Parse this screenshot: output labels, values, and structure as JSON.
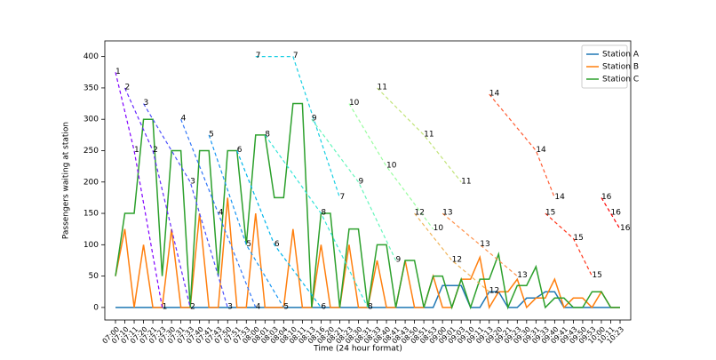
{
  "chart_data": {
    "type": "line",
    "xlabel": "Time (24 hour format)",
    "ylabel": "Passengers waiting at station",
    "categories": [
      "07:00",
      "07:10",
      "07:11",
      "07:20",
      "07:21",
      "07:23",
      "07:30",
      "07:31",
      "07:33",
      "07:40",
      "07:41",
      "07:43",
      "07:50",
      "07:51",
      "07:53",
      "08:00",
      "08:01",
      "08:03",
      "08:04",
      "08:10",
      "08:11",
      "08:13",
      "08:16",
      "08:20",
      "08:21",
      "08:23",
      "08:30",
      "08:31",
      "08:33",
      "08:40",
      "08:41",
      "08:43",
      "08:50",
      "08:51",
      "08:53",
      "09:00",
      "09:01",
      "09:03",
      "09:10",
      "09:11",
      "09:13",
      "09:20",
      "09:21",
      "09:23",
      "09:30",
      "09:31",
      "09:33",
      "09:40",
      "09:41",
      "09:43",
      "09:50",
      "09:53",
      "10:00",
      "10:11",
      "10:23"
    ],
    "series": [
      {
        "name": "Station A",
        "color": "#1f77b4",
        "values": [
          0,
          0,
          0,
          0,
          0,
          0,
          0,
          0,
          0,
          0,
          0,
          0,
          0,
          0,
          0,
          0,
          0,
          0,
          0,
          0,
          0,
          0,
          0,
          0,
          0,
          0,
          0,
          0,
          0,
          0,
          0,
          0,
          0,
          0,
          0,
          35,
          35,
          35,
          0,
          0,
          25,
          25,
          0,
          0,
          15,
          15,
          25,
          25,
          0,
          0,
          0,
          0,
          0,
          0,
          0
        ]
      },
      {
        "name": "Station B",
        "color": "#ff7f0e",
        "values": [
          50,
          125,
          0,
          100,
          0,
          0,
          125,
          0,
          0,
          150,
          0,
          0,
          175,
          0,
          0,
          150,
          0,
          0,
          0,
          125,
          0,
          0,
          100,
          0,
          0,
          100,
          0,
          0,
          75,
          0,
          0,
          75,
          0,
          0,
          50,
          0,
          0,
          45,
          45,
          80,
          0,
          25,
          25,
          45,
          0,
          15,
          15,
          45,
          0,
          15,
          15,
          0,
          25,
          0,
          0
        ]
      },
      {
        "name": "Station C",
        "color": "#2ca02c",
        "values": [
          50,
          150,
          150,
          300,
          300,
          50,
          250,
          250,
          0,
          250,
          250,
          50,
          250,
          250,
          100,
          275,
          275,
          175,
          175,
          325,
          325,
          0,
          150,
          150,
          0,
          125,
          125,
          0,
          100,
          100,
          0,
          75,
          75,
          0,
          50,
          50,
          0,
          45,
          0,
          45,
          45,
          85,
          0,
          35,
          35,
          65,
          0,
          15,
          15,
          0,
          0,
          25,
          25,
          0,
          0
        ]
      }
    ],
    "annotations": [
      {
        "name": "1",
        "color": "#8000ff",
        "x": [
          "07:00",
          "07:11",
          "07:23"
        ],
        "values": [
          375,
          250,
          0
        ]
      },
      {
        "name": "2",
        "color": "#6629fe",
        "x": [
          "07:10",
          "07:21",
          "07:33"
        ],
        "values": [
          350,
          250,
          0
        ]
      },
      {
        "name": "3",
        "color": "#4c50fc",
        "x": [
          "07:20",
          "07:33",
          "07:50"
        ],
        "values": [
          325,
          200,
          0
        ]
      },
      {
        "name": "4",
        "color": "#3176f8",
        "x": [
          "07:31",
          "07:43",
          "08:00"
        ],
        "values": [
          300,
          150,
          0
        ]
      },
      {
        "name": "5",
        "color": "#1996f3",
        "x": [
          "07:41",
          "07:53",
          "08:04"
        ],
        "values": [
          275,
          100,
          0
        ]
      },
      {
        "name": "6",
        "color": "#00b5eb",
        "x": [
          "07:51",
          "08:03",
          "08:16"
        ],
        "values": [
          250,
          100,
          0
        ]
      },
      {
        "name": "7",
        "color": "#1acfe3",
        "x": [
          "08:00",
          "08:10",
          "08:21"
        ],
        "values": [
          400,
          400,
          175
        ]
      },
      {
        "name": "8",
        "color": "#33e4d8",
        "x": [
          "08:01",
          "08:16",
          "08:31"
        ],
        "values": [
          275,
          150,
          0
        ]
      },
      {
        "name": "9",
        "color": "#66f6bc",
        "x": [
          "08:13",
          "08:30",
          "08:41"
        ],
        "values": [
          300,
          200,
          75
        ]
      },
      {
        "name": "10",
        "color": "#99fd9f",
        "x": [
          "08:23",
          "08:40",
          "08:53"
        ],
        "values": [
          325,
          225,
          125
        ]
      },
      {
        "name": "11",
        "color": "#c2e47a",
        "x": [
          "08:33",
          "08:51",
          "09:03"
        ],
        "values": [
          350,
          275,
          200
        ]
      },
      {
        "name": "12",
        "color": "#f0b45a",
        "x": [
          "08:50",
          "09:01",
          "09:13"
        ],
        "values": [
          150,
          75,
          25
        ]
      },
      {
        "name": "13",
        "color": "#ff8f47",
        "x": [
          "09:00",
          "09:11",
          "09:23"
        ],
        "values": [
          150,
          100,
          50
        ]
      },
      {
        "name": "14",
        "color": "#ff5a30",
        "x": [
          "09:13",
          "09:31",
          "09:40"
        ],
        "values": [
          340,
          250,
          175
        ]
      },
      {
        "name": "15",
        "color": "#ff3419",
        "x": [
          "09:33",
          "09:43",
          "09:53"
        ],
        "values": [
          150,
          110,
          50
        ]
      },
      {
        "name": "16",
        "color": "#ff0000",
        "x": [
          "10:00",
          "10:11",
          "10:23"
        ],
        "values": [
          175,
          150,
          125
        ]
      }
    ],
    "ylim": [
      -20,
      425
    ],
    "yticks": [
      0,
      50,
      100,
      150,
      200,
      250,
      300,
      350,
      400
    ],
    "legend": "upper right"
  }
}
